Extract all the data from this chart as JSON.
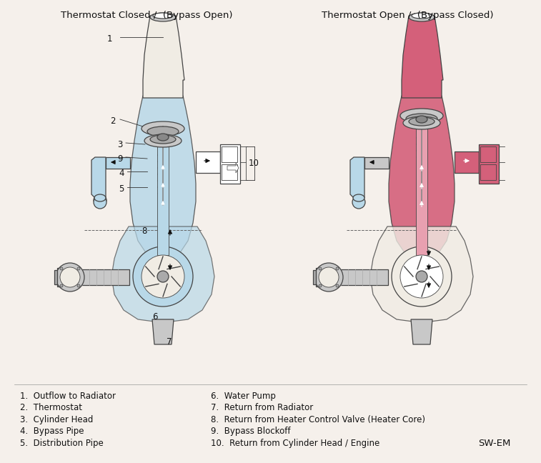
{
  "title_left": "Thermostat Closed /  (Bypass Open)",
  "title_right": "Thermostat Open /  (Bypass Closed)",
  "bg_color": "#f5f0eb",
  "legend_items_col1": [
    "1.  Outflow to Radiator",
    "2.  Thermostat",
    "3.  Cylinder Head",
    "4.  Bypass Pipe",
    "5.  Distribution Pipe"
  ],
  "legend_items_col2": [
    "6.  Water Pump",
    "7.  Return from Radiator",
    "8.  Return from Heater Control Valve (Heater Core)",
    "9.  Bypass Blockoff",
    "10.  Return from Cylinder Head / Engine"
  ],
  "watermark": "SW-EM",
  "fill_left": "#b8d8e8",
  "fill_right": "#d4607a",
  "fill_right_light": "#e8a0b0",
  "fill_bypass": "#a8c8e0",
  "outline_color": "#444444",
  "gray_light": "#c8c8c8",
  "gray_mid": "#aaaaaa",
  "gray_dark": "#888888",
  "white": "#ffffff",
  "cream": "#f0ece4",
  "text_color": "#111111",
  "title_fontsize": 9.5,
  "legend_fontsize": 8.5,
  "label_fontsize": 8.5,
  "arrow_color": "#111111",
  "arrow_white": "#ffffff"
}
